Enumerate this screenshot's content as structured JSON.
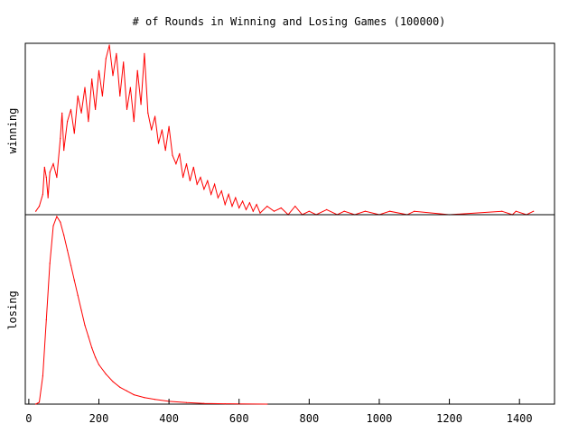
{
  "chart_data": {
    "type": "line",
    "title": "# of Rounds in Winning and Losing Games (100000)",
    "x_ticks": [
      "0",
      "200",
      "400",
      "600",
      "800",
      "1000",
      "1200",
      "1400"
    ],
    "x_tick_values": [
      0,
      200,
      400,
      600,
      800,
      1000,
      1200,
      1400
    ],
    "xlim": [
      -10,
      1500
    ],
    "panels": [
      {
        "name": "winning",
        "ylabel": "winning",
        "color": "#ff0000",
        "series": [
          {
            "x": 20,
            "y": 0.02
          },
          {
            "x": 30,
            "y": 0.05
          },
          {
            "x": 40,
            "y": 0.12
          },
          {
            "x": 45,
            "y": 0.28
          },
          {
            "x": 50,
            "y": 0.22
          },
          {
            "x": 55,
            "y": 0.1
          },
          {
            "x": 60,
            "y": 0.25
          },
          {
            "x": 70,
            "y": 0.3
          },
          {
            "x": 80,
            "y": 0.22
          },
          {
            "x": 90,
            "y": 0.45
          },
          {
            "x": 95,
            "y": 0.6
          },
          {
            "x": 100,
            "y": 0.38
          },
          {
            "x": 110,
            "y": 0.55
          },
          {
            "x": 120,
            "y": 0.62
          },
          {
            "x": 130,
            "y": 0.48
          },
          {
            "x": 140,
            "y": 0.7
          },
          {
            "x": 150,
            "y": 0.6
          },
          {
            "x": 160,
            "y": 0.75
          },
          {
            "x": 170,
            "y": 0.55
          },
          {
            "x": 180,
            "y": 0.8
          },
          {
            "x": 190,
            "y": 0.62
          },
          {
            "x": 200,
            "y": 0.85
          },
          {
            "x": 210,
            "y": 0.7
          },
          {
            "x": 220,
            "y": 0.92
          },
          {
            "x": 230,
            "y": 1.0
          },
          {
            "x": 240,
            "y": 0.82
          },
          {
            "x": 250,
            "y": 0.95
          },
          {
            "x": 260,
            "y": 0.7
          },
          {
            "x": 270,
            "y": 0.9
          },
          {
            "x": 280,
            "y": 0.62
          },
          {
            "x": 290,
            "y": 0.75
          },
          {
            "x": 300,
            "y": 0.55
          },
          {
            "x": 310,
            "y": 0.85
          },
          {
            "x": 320,
            "y": 0.65
          },
          {
            "x": 330,
            "y": 0.95
          },
          {
            "x": 340,
            "y": 0.6
          },
          {
            "x": 350,
            "y": 0.5
          },
          {
            "x": 360,
            "y": 0.58
          },
          {
            "x": 370,
            "y": 0.42
          },
          {
            "x": 380,
            "y": 0.5
          },
          {
            "x": 390,
            "y": 0.38
          },
          {
            "x": 400,
            "y": 0.52
          },
          {
            "x": 410,
            "y": 0.35
          },
          {
            "x": 420,
            "y": 0.3
          },
          {
            "x": 430,
            "y": 0.36
          },
          {
            "x": 440,
            "y": 0.22
          },
          {
            "x": 450,
            "y": 0.3
          },
          {
            "x": 460,
            "y": 0.2
          },
          {
            "x": 470,
            "y": 0.28
          },
          {
            "x": 480,
            "y": 0.18
          },
          {
            "x": 490,
            "y": 0.22
          },
          {
            "x": 500,
            "y": 0.15
          },
          {
            "x": 510,
            "y": 0.2
          },
          {
            "x": 520,
            "y": 0.12
          },
          {
            "x": 530,
            "y": 0.18
          },
          {
            "x": 540,
            "y": 0.1
          },
          {
            "x": 550,
            "y": 0.14
          },
          {
            "x": 560,
            "y": 0.06
          },
          {
            "x": 570,
            "y": 0.12
          },
          {
            "x": 580,
            "y": 0.05
          },
          {
            "x": 590,
            "y": 0.1
          },
          {
            "x": 600,
            "y": 0.04
          },
          {
            "x": 610,
            "y": 0.08
          },
          {
            "x": 620,
            "y": 0.03
          },
          {
            "x": 630,
            "y": 0.07
          },
          {
            "x": 640,
            "y": 0.02
          },
          {
            "x": 650,
            "y": 0.06
          },
          {
            "x": 660,
            "y": 0.01
          },
          {
            "x": 680,
            "y": 0.05
          },
          {
            "x": 700,
            "y": 0.02
          },
          {
            "x": 720,
            "y": 0.04
          },
          {
            "x": 740,
            "y": 0.0
          },
          {
            "x": 760,
            "y": 0.05
          },
          {
            "x": 780,
            "y": 0.0
          },
          {
            "x": 800,
            "y": 0.02
          },
          {
            "x": 820,
            "y": 0.0
          },
          {
            "x": 850,
            "y": 0.03
          },
          {
            "x": 880,
            "y": 0.0
          },
          {
            "x": 900,
            "y": 0.02
          },
          {
            "x": 930,
            "y": 0.0
          },
          {
            "x": 960,
            "y": 0.02
          },
          {
            "x": 1000,
            "y": 0.0
          },
          {
            "x": 1030,
            "y": 0.02
          },
          {
            "x": 1080,
            "y": 0.0
          },
          {
            "x": 1100,
            "y": 0.02
          },
          {
            "x": 1200,
            "y": 0.0
          },
          {
            "x": 1350,
            "y": 0.02
          },
          {
            "x": 1380,
            "y": 0.0
          },
          {
            "x": 1390,
            "y": 0.02
          },
          {
            "x": 1420,
            "y": 0.0
          },
          {
            "x": 1440,
            "y": 0.02
          }
        ]
      },
      {
        "name": "losing",
        "ylabel": "losing",
        "color": "#ff0000",
        "series": [
          {
            "x": 20,
            "y": 0.0
          },
          {
            "x": 30,
            "y": 0.01
          },
          {
            "x": 40,
            "y": 0.15
          },
          {
            "x": 50,
            "y": 0.45
          },
          {
            "x": 60,
            "y": 0.75
          },
          {
            "x": 70,
            "y": 0.95
          },
          {
            "x": 80,
            "y": 1.0
          },
          {
            "x": 90,
            "y": 0.97
          },
          {
            "x": 100,
            "y": 0.9
          },
          {
            "x": 110,
            "y": 0.82
          },
          {
            "x": 120,
            "y": 0.74
          },
          {
            "x": 130,
            "y": 0.66
          },
          {
            "x": 140,
            "y": 0.58
          },
          {
            "x": 150,
            "y": 0.5
          },
          {
            "x": 160,
            "y": 0.42
          },
          {
            "x": 170,
            "y": 0.36
          },
          {
            "x": 180,
            "y": 0.3
          },
          {
            "x": 190,
            "y": 0.25
          },
          {
            "x": 200,
            "y": 0.21
          },
          {
            "x": 220,
            "y": 0.16
          },
          {
            "x": 240,
            "y": 0.12
          },
          {
            "x": 260,
            "y": 0.09
          },
          {
            "x": 280,
            "y": 0.07
          },
          {
            "x": 300,
            "y": 0.05
          },
          {
            "x": 330,
            "y": 0.035
          },
          {
            "x": 360,
            "y": 0.025
          },
          {
            "x": 400,
            "y": 0.015
          },
          {
            "x": 450,
            "y": 0.008
          },
          {
            "x": 500,
            "y": 0.004
          },
          {
            "x": 560,
            "y": 0.002
          },
          {
            "x": 600,
            "y": 0.001
          },
          {
            "x": 680,
            "y": 0.0
          }
        ]
      }
    ],
    "grid": false,
    "legend": "none"
  }
}
